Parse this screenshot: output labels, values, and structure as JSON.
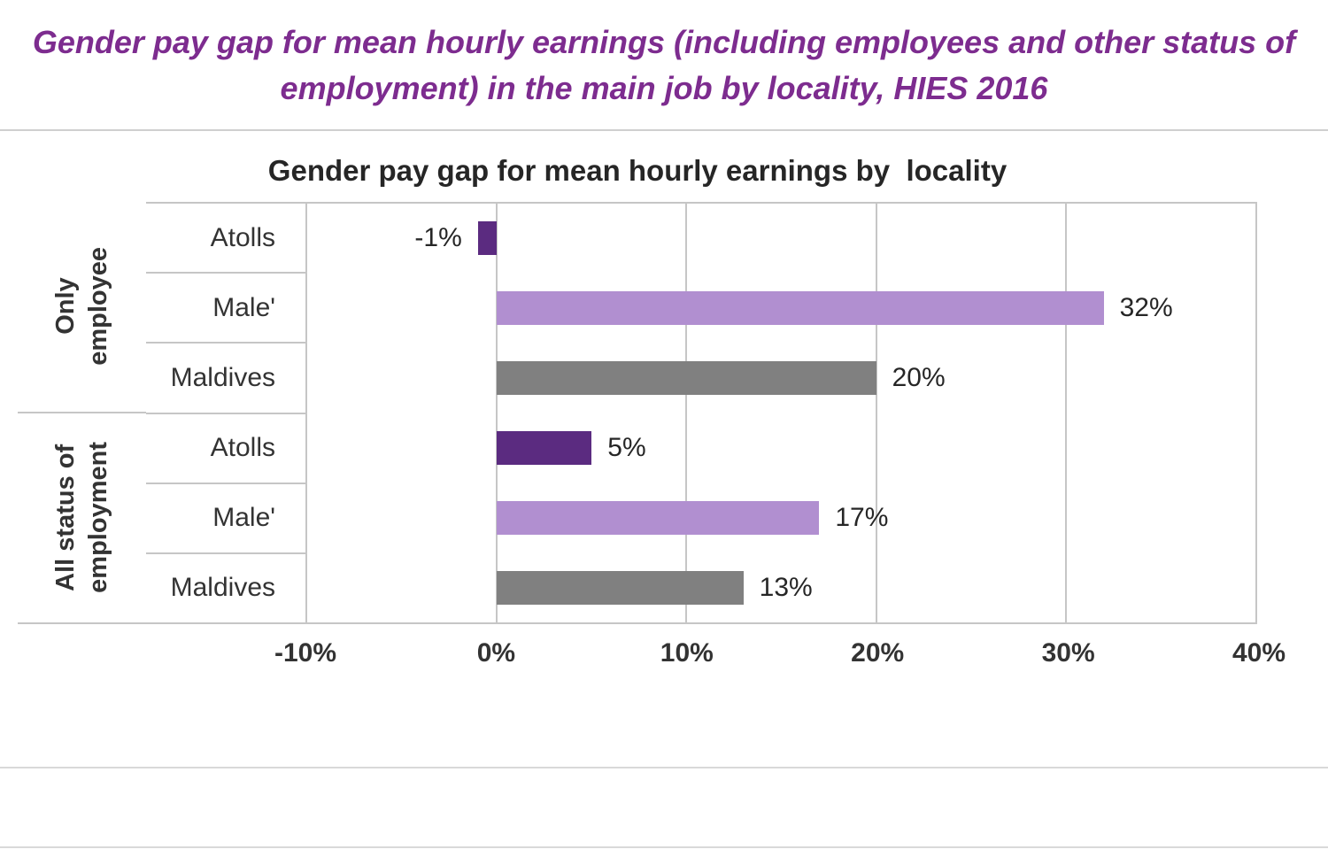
{
  "page": {
    "background": "#ffffff"
  },
  "header": {
    "title_lines": [
      "Gender pay gap for mean hourly earnings (including employees and other status of",
      "employment) in the main job by locality, HIES 2016"
    ],
    "text_color": "#7d2c8f"
  },
  "chart_data": {
    "type": "bar",
    "orientation": "horizontal",
    "title": "Gender pay gap for mean hourly earnings by  locality",
    "xlabel": "",
    "xlim": [
      -10,
      40
    ],
    "grid": "vertical",
    "x_ticks": [
      {
        "value": -10,
        "label": "-10%"
      },
      {
        "value": 0,
        "label": "0%"
      },
      {
        "value": 10,
        "label": "10%"
      },
      {
        "value": 20,
        "label": "20%"
      },
      {
        "value": 30,
        "label": "30%"
      },
      {
        "value": 40,
        "label": "40%"
      }
    ],
    "groups": [
      {
        "label": "Only\nemployee",
        "rows": [
          {
            "category": "Atolls",
            "value": -1,
            "value_label": "-1%",
            "color": "#5b2b80"
          },
          {
            "category": "Male'",
            "value": 32,
            "value_label": "32%",
            "color": "#b18fd0"
          },
          {
            "category": "Maldives",
            "value": 20,
            "value_label": "20%",
            "color": "#808080"
          }
        ]
      },
      {
        "label": "All status of\nemployment",
        "rows": [
          {
            "category": "Atolls",
            "value": 5,
            "value_label": "5%",
            "color": "#5b2b80"
          },
          {
            "category": "Male'",
            "value": 17,
            "value_label": "17%",
            "color": "#b18fd0"
          },
          {
            "category": "Maldives",
            "value": 13,
            "value_label": "13%",
            "color": "#808080"
          }
        ]
      }
    ],
    "bar_colors": {
      "atolls_dark_purple": "#5b2b80",
      "male_light_purple": "#b18fd0",
      "maldives_gray": "#808080"
    }
  }
}
